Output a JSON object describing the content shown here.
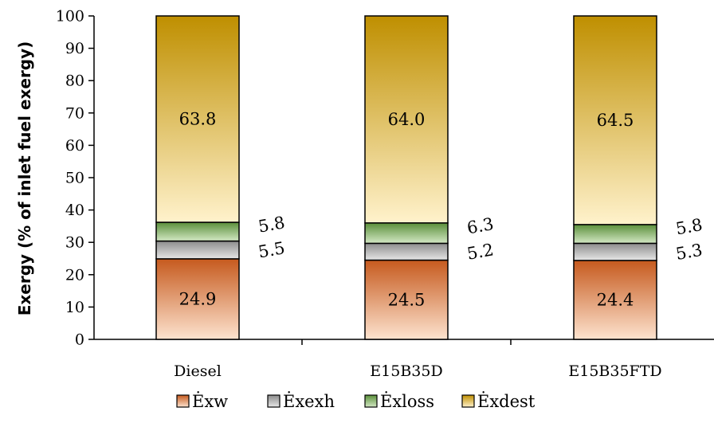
{
  "chart_data": {
    "type": "bar",
    "stacked": true,
    "categories": [
      "Diesel",
      "E15B35D",
      "E15B35FTD"
    ],
    "series": [
      {
        "name": "Ėxw",
        "values": [
          24.9,
          24.5,
          24.4
        ],
        "color_top": "#c65a1e",
        "color_bottom": "#fde3cf"
      },
      {
        "name": "Ėxexh",
        "values": [
          5.5,
          5.2,
          5.3
        ],
        "color_top": "#8c8c8c",
        "color_bottom": "#e6e6e6"
      },
      {
        "name": "Ėxloss",
        "values": [
          5.8,
          6.3,
          5.8
        ],
        "color_top": "#5a8f3a",
        "color_bottom": "#d3e8c4"
      },
      {
        "name": "Ėxdest",
        "values": [
          63.8,
          64.0,
          64.5
        ],
        "color_top": "#bf8f00",
        "color_bottom": "#fff2cc"
      }
    ],
    "segment_labels": [
      [
        "24.9",
        "24.5",
        "24.4"
      ],
      [
        "5.5",
        "5.2",
        "5.3"
      ],
      [
        "5.8",
        "6.3",
        "5.8"
      ],
      [
        "63.8",
        "64.0",
        "64.5"
      ]
    ],
    "ylabel": "Exergy (% of inlet fuel exergy)",
    "xlabel": "",
    "ylim": [
      0,
      100
    ],
    "yticks": [
      "0",
      "10",
      "20",
      "30",
      "40",
      "50",
      "60",
      "70",
      "80",
      "90",
      "100"
    ],
    "legend_position": "bottom-center",
    "grid": false
  }
}
